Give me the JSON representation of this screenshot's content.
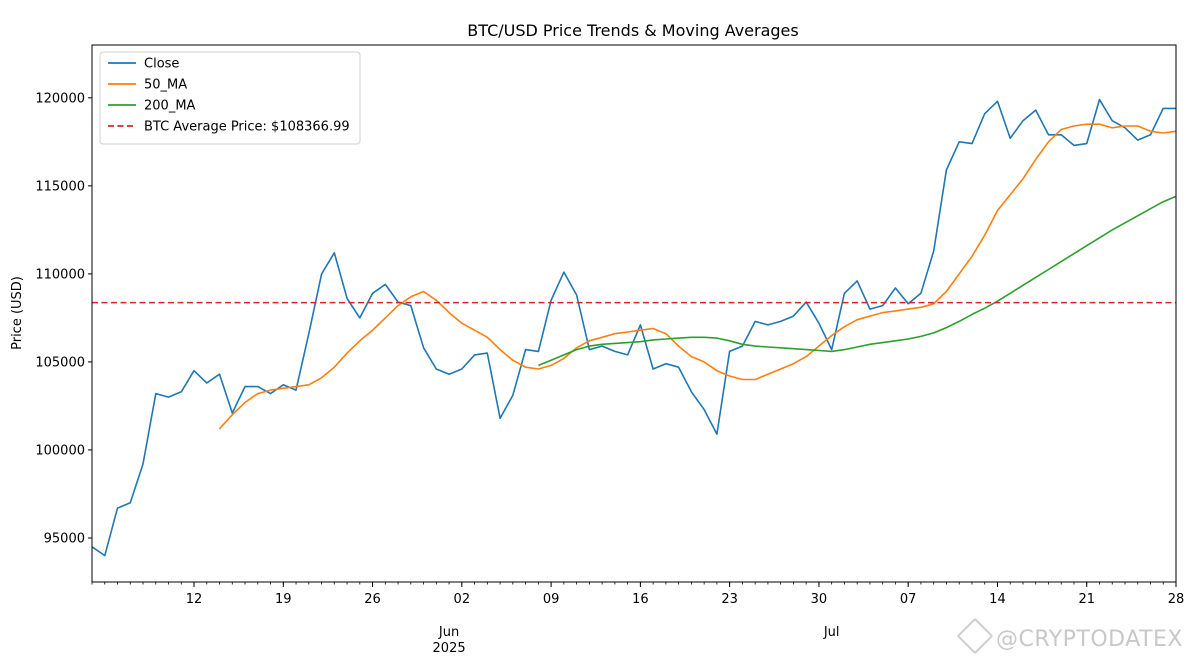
{
  "chart_data": {
    "type": "line",
    "title": "BTC/USD Price Trends & Moving Averages",
    "xlabel": "",
    "ylabel": "Price (USD)",
    "xlim": [
      "2025-05-04",
      "2025-07-28"
    ],
    "ylim": [
      92500,
      123000
    ],
    "yticks": [
      95000,
      100000,
      105000,
      110000,
      115000,
      120000
    ],
    "xticks": [
      {
        "date": "2025-05-12",
        "label": "12"
      },
      {
        "date": "2025-05-19",
        "label": "19"
      },
      {
        "date": "2025-05-26",
        "label": "26"
      },
      {
        "date": "2025-06-02",
        "label": "02"
      },
      {
        "date": "2025-06-09",
        "label": "09"
      },
      {
        "date": "2025-06-16",
        "label": "16"
      },
      {
        "date": "2025-06-23",
        "label": "23"
      },
      {
        "date": "2025-06-30",
        "label": "30"
      },
      {
        "date": "2025-07-07",
        "label": "07"
      },
      {
        "date": "2025-07-14",
        "label": "14"
      },
      {
        "date": "2025-07-21",
        "label": "21"
      },
      {
        "date": "2025-07-28",
        "label": "28"
      }
    ],
    "month_labels": [
      {
        "date": "2025-06-01",
        "label": "Jun",
        "sublabel": "2025"
      },
      {
        "date": "2025-07-01",
        "label": "Jul",
        "sublabel": ""
      }
    ],
    "grid": false,
    "legend_position": "top-left",
    "series": [
      {
        "name": "Close",
        "color": "#1f77b4",
        "style": "solid",
        "points": [
          [
            "2025-05-04",
            94500
          ],
          [
            "2025-05-05",
            94000
          ],
          [
            "2025-05-06",
            96700
          ],
          [
            "2025-05-07",
            97000
          ],
          [
            "2025-05-08",
            99200
          ],
          [
            "2025-05-09",
            103200
          ],
          [
            "2025-05-10",
            103000
          ],
          [
            "2025-05-11",
            103300
          ],
          [
            "2025-05-12",
            104500
          ],
          [
            "2025-05-13",
            103800
          ],
          [
            "2025-05-14",
            104300
          ],
          [
            "2025-05-15",
            102100
          ],
          [
            "2025-05-16",
            103600
          ],
          [
            "2025-05-17",
            103600
          ],
          [
            "2025-05-18",
            103200
          ],
          [
            "2025-05-19",
            103700
          ],
          [
            "2025-05-20",
            103400
          ],
          [
            "2025-05-21",
            106600
          ],
          [
            "2025-05-22",
            110000
          ],
          [
            "2025-05-23",
            111200
          ],
          [
            "2025-05-24",
            108600
          ],
          [
            "2025-05-25",
            107500
          ],
          [
            "2025-05-26",
            108900
          ],
          [
            "2025-05-27",
            109400
          ],
          [
            "2025-05-28",
            108400
          ],
          [
            "2025-05-29",
            108200
          ],
          [
            "2025-05-30",
            105800
          ],
          [
            "2025-05-31",
            104600
          ],
          [
            "2025-06-01",
            104300
          ],
          [
            "2025-06-02",
            104600
          ],
          [
            "2025-06-03",
            105400
          ],
          [
            "2025-06-04",
            105500
          ],
          [
            "2025-06-05",
            101800
          ],
          [
            "2025-06-06",
            103100
          ],
          [
            "2025-06-07",
            105700
          ],
          [
            "2025-06-08",
            105600
          ],
          [
            "2025-06-09",
            108500
          ],
          [
            "2025-06-10",
            110100
          ],
          [
            "2025-06-11",
            108800
          ],
          [
            "2025-06-12",
            105700
          ],
          [
            "2025-06-13",
            105900
          ],
          [
            "2025-06-14",
            105600
          ],
          [
            "2025-06-15",
            105400
          ],
          [
            "2025-06-16",
            107100
          ],
          [
            "2025-06-17",
            104600
          ],
          [
            "2025-06-18",
            104900
          ],
          [
            "2025-06-19",
            104700
          ],
          [
            "2025-06-20",
            103300
          ],
          [
            "2025-06-21",
            102300
          ],
          [
            "2025-06-22",
            100900
          ],
          [
            "2025-06-23",
            105600
          ],
          [
            "2025-06-24",
            105900
          ],
          [
            "2025-06-25",
            107300
          ],
          [
            "2025-06-26",
            107100
          ],
          [
            "2025-06-27",
            107300
          ],
          [
            "2025-06-28",
            107600
          ],
          [
            "2025-06-29",
            108400
          ],
          [
            "2025-06-30",
            107200
          ],
          [
            "2025-07-01",
            105700
          ],
          [
            "2025-07-02",
            108900
          ],
          [
            "2025-07-03",
            109600
          ],
          [
            "2025-07-04",
            108000
          ],
          [
            "2025-07-05",
            108200
          ],
          [
            "2025-07-06",
            109200
          ],
          [
            "2025-07-07",
            108300
          ],
          [
            "2025-07-08",
            108900
          ],
          [
            "2025-07-09",
            111300
          ],
          [
            "2025-07-10",
            115900
          ],
          [
            "2025-07-11",
            117500
          ],
          [
            "2025-07-12",
            117400
          ],
          [
            "2025-07-13",
            119100
          ],
          [
            "2025-07-14",
            119800
          ],
          [
            "2025-07-15",
            117700
          ],
          [
            "2025-07-16",
            118700
          ],
          [
            "2025-07-17",
            119300
          ],
          [
            "2025-07-18",
            117900
          ],
          [
            "2025-07-19",
            117900
          ],
          [
            "2025-07-20",
            117300
          ],
          [
            "2025-07-21",
            117400
          ],
          [
            "2025-07-22",
            119900
          ],
          [
            "2025-07-23",
            118700
          ],
          [
            "2025-07-24",
            118300
          ],
          [
            "2025-07-25",
            117600
          ],
          [
            "2025-07-26",
            117900
          ],
          [
            "2025-07-27",
            119400
          ],
          [
            "2025-07-28",
            119400
          ]
        ]
      },
      {
        "name": "50_MA",
        "color": "#ff7f0e",
        "style": "solid",
        "points": [
          [
            "2025-05-14",
            101200
          ],
          [
            "2025-05-15",
            102000
          ],
          [
            "2025-05-16",
            102700
          ],
          [
            "2025-05-17",
            103200
          ],
          [
            "2025-05-18",
            103400
          ],
          [
            "2025-05-19",
            103500
          ],
          [
            "2025-05-20",
            103600
          ],
          [
            "2025-05-21",
            103700
          ],
          [
            "2025-05-22",
            104100
          ],
          [
            "2025-05-23",
            104700
          ],
          [
            "2025-05-24",
            105500
          ],
          [
            "2025-05-25",
            106200
          ],
          [
            "2025-05-26",
            106800
          ],
          [
            "2025-05-27",
            107500
          ],
          [
            "2025-05-28",
            108200
          ],
          [
            "2025-05-29",
            108700
          ],
          [
            "2025-05-30",
            109000
          ],
          [
            "2025-05-31",
            108500
          ],
          [
            "2025-06-01",
            107800
          ],
          [
            "2025-06-02",
            107200
          ],
          [
            "2025-06-03",
            106800
          ],
          [
            "2025-06-04",
            106400
          ],
          [
            "2025-06-05",
            105700
          ],
          [
            "2025-06-06",
            105100
          ],
          [
            "2025-06-07",
            104700
          ],
          [
            "2025-06-08",
            104600
          ],
          [
            "2025-06-09",
            104800
          ],
          [
            "2025-06-10",
            105200
          ],
          [
            "2025-06-11",
            105800
          ],
          [
            "2025-06-12",
            106200
          ],
          [
            "2025-06-13",
            106400
          ],
          [
            "2025-06-14",
            106600
          ],
          [
            "2025-06-15",
            106700
          ],
          [
            "2025-06-16",
            106800
          ],
          [
            "2025-06-17",
            106900
          ],
          [
            "2025-06-18",
            106600
          ],
          [
            "2025-06-19",
            105900
          ],
          [
            "2025-06-20",
            105300
          ],
          [
            "2025-06-21",
            105000
          ],
          [
            "2025-06-22",
            104500
          ],
          [
            "2025-06-23",
            104200
          ],
          [
            "2025-06-24",
            104000
          ],
          [
            "2025-06-25",
            104000
          ],
          [
            "2025-06-26",
            104300
          ],
          [
            "2025-06-27",
            104600
          ],
          [
            "2025-06-28",
            104900
          ],
          [
            "2025-06-29",
            105300
          ],
          [
            "2025-06-30",
            105900
          ],
          [
            "2025-07-01",
            106500
          ],
          [
            "2025-07-02",
            107000
          ],
          [
            "2025-07-03",
            107400
          ],
          [
            "2025-07-04",
            107600
          ],
          [
            "2025-07-05",
            107800
          ],
          [
            "2025-07-06",
            107900
          ],
          [
            "2025-07-07",
            108000
          ],
          [
            "2025-07-08",
            108100
          ],
          [
            "2025-07-09",
            108300
          ],
          [
            "2025-07-10",
            109000
          ],
          [
            "2025-07-11",
            110000
          ],
          [
            "2025-07-12",
            111000
          ],
          [
            "2025-07-13",
            112200
          ],
          [
            "2025-07-14",
            113600
          ],
          [
            "2025-07-15",
            114500
          ],
          [
            "2025-07-16",
            115400
          ],
          [
            "2025-07-17",
            116500
          ],
          [
            "2025-07-18",
            117500
          ],
          [
            "2025-07-19",
            118200
          ],
          [
            "2025-07-20",
            118400
          ],
          [
            "2025-07-21",
            118500
          ],
          [
            "2025-07-22",
            118500
          ],
          [
            "2025-07-23",
            118300
          ],
          [
            "2025-07-24",
            118400
          ],
          [
            "2025-07-25",
            118400
          ],
          [
            "2025-07-26",
            118100
          ],
          [
            "2025-07-27",
            118000
          ],
          [
            "2025-07-28",
            118100
          ]
        ]
      },
      {
        "name": "200_MA",
        "color": "#2ca02c",
        "style": "solid",
        "points": [
          [
            "2025-06-08",
            104800
          ],
          [
            "2025-06-09",
            105100
          ],
          [
            "2025-06-10",
            105400
          ],
          [
            "2025-06-11",
            105700
          ],
          [
            "2025-06-12",
            105900
          ],
          [
            "2025-06-13",
            106000
          ],
          [
            "2025-06-14",
            106050
          ],
          [
            "2025-06-15",
            106100
          ],
          [
            "2025-06-16",
            106150
          ],
          [
            "2025-06-17",
            106250
          ],
          [
            "2025-06-18",
            106300
          ],
          [
            "2025-06-19",
            106350
          ],
          [
            "2025-06-20",
            106400
          ],
          [
            "2025-06-21",
            106400
          ],
          [
            "2025-06-22",
            106350
          ],
          [
            "2025-06-23",
            106200
          ],
          [
            "2025-06-24",
            106000
          ],
          [
            "2025-06-25",
            105900
          ],
          [
            "2025-06-26",
            105850
          ],
          [
            "2025-06-27",
            105800
          ],
          [
            "2025-06-28",
            105750
          ],
          [
            "2025-06-29",
            105700
          ],
          [
            "2025-06-30",
            105650
          ],
          [
            "2025-07-01",
            105600
          ],
          [
            "2025-07-02",
            105700
          ],
          [
            "2025-07-03",
            105850
          ],
          [
            "2025-07-04",
            106000
          ],
          [
            "2025-07-05",
            106100
          ],
          [
            "2025-07-06",
            106200
          ],
          [
            "2025-07-07",
            106300
          ],
          [
            "2025-07-08",
            106450
          ],
          [
            "2025-07-09",
            106650
          ],
          [
            "2025-07-10",
            106950
          ],
          [
            "2025-07-11",
            107300
          ],
          [
            "2025-07-12",
            107700
          ],
          [
            "2025-07-13",
            108050
          ],
          [
            "2025-07-14",
            108450
          ],
          [
            "2025-07-15",
            108900
          ],
          [
            "2025-07-16",
            109350
          ],
          [
            "2025-07-17",
            109800
          ],
          [
            "2025-07-18",
            110250
          ],
          [
            "2025-07-19",
            110700
          ],
          [
            "2025-07-20",
            111150
          ],
          [
            "2025-07-21",
            111600
          ],
          [
            "2025-07-22",
            112050
          ],
          [
            "2025-07-23",
            112500
          ],
          [
            "2025-07-24",
            112900
          ],
          [
            "2025-07-25",
            113300
          ],
          [
            "2025-07-26",
            113700
          ],
          [
            "2025-07-27",
            114100
          ],
          [
            "2025-07-28",
            114400
          ]
        ]
      }
    ],
    "reference_lines": [
      {
        "name": "BTC Average Price: $108366.99",
        "value": 108366.99,
        "color": "#d62728",
        "style": "dashed"
      }
    ]
  },
  "watermark": {
    "text": "@CRYPTODATEX",
    "icon": "diamond-logo-icon"
  }
}
